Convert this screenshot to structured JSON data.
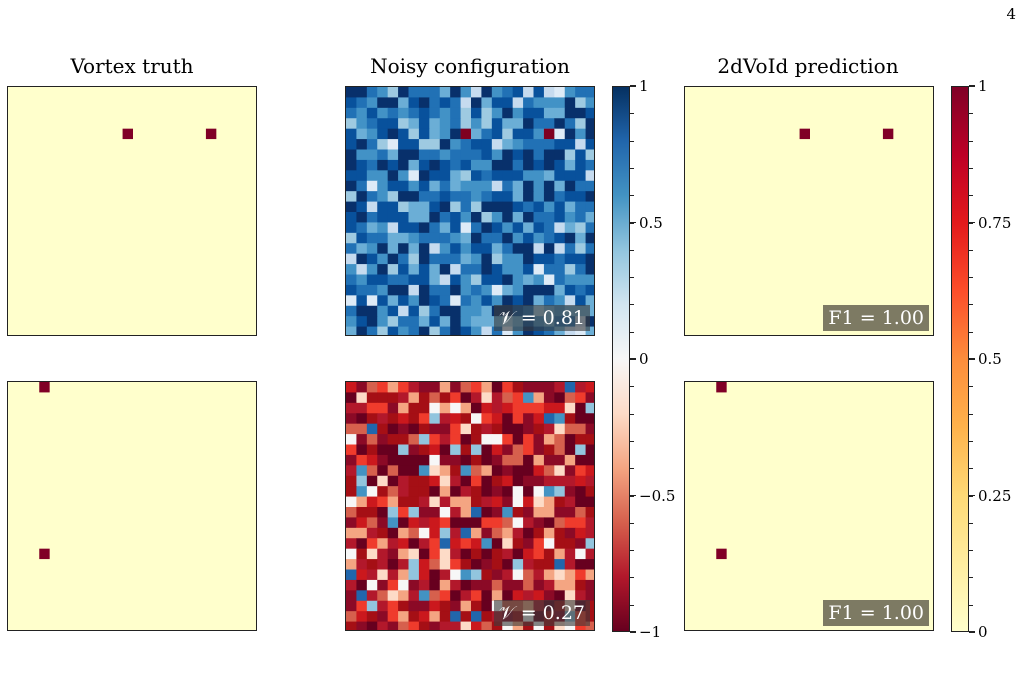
{
  "page_number": "4",
  "titles": {
    "col1": "Vortex truth",
    "col2": "Noisy configuration",
    "col3": "2dVoId prediction"
  },
  "badges": {
    "row1_v": "𝒱 = 0.81",
    "row2_v": "𝒱 = 0.27",
    "row1_f1": "F1  = 1.00",
    "row2_f1": "F1  = 1.00"
  },
  "colorbar_spin": {
    "ticks": [
      "1",
      "0.5",
      "0",
      "−0.5",
      "−1"
    ],
    "colors": [
      "#67001f",
      "#b2182b",
      "#d6604d",
      "#f4a582",
      "#fddbc7",
      "#f7f7f7",
      "#d1e5f0",
      "#92c5de",
      "#4393c3",
      "#2166ac",
      "#053061"
    ]
  },
  "colorbar_vortex": {
    "ticks": [
      "1",
      "0.75",
      "0.5",
      "0.25",
      "0"
    ],
    "colors": [
      "#ffffcc",
      "#ffeda0",
      "#fed976",
      "#feb24c",
      "#fd8d3c",
      "#fc4e2a",
      "#e31a1c",
      "#bd0026",
      "#800026"
    ]
  },
  "chart_data": [
    {
      "type": "heatmap",
      "title": "Vortex truth",
      "grid_size": 24,
      "background_value": 0,
      "vortex_cells": [
        [
          11,
          4
        ],
        [
          19,
          4
        ]
      ]
    },
    {
      "type": "heatmap",
      "title": "Noisy configuration",
      "grid_size": 24,
      "value_range": [
        -1,
        1
      ],
      "metric": "𝒱 = 0.81",
      "vortex_cells": [
        [
          11,
          4
        ],
        [
          19,
          4
        ]
      ]
    },
    {
      "type": "heatmap",
      "title": "2dVoId prediction",
      "grid_size": 24,
      "background_value": 0,
      "vortex_cells": [
        [
          11,
          4
        ],
        [
          19,
          4
        ]
      ],
      "metric": "F1 = 1.00"
    },
    {
      "type": "heatmap",
      "grid_size": 24,
      "background_value": 0,
      "vortex_cells": [
        [
          3,
          0
        ],
        [
          3,
          16
        ]
      ]
    },
    {
      "type": "heatmap",
      "grid_size": 24,
      "value_range": [
        -1,
        1
      ],
      "metric": "𝒱 = 0.27"
    },
    {
      "type": "heatmap",
      "grid_size": 24,
      "background_value": 0,
      "vortex_cells": [
        [
          3,
          0
        ],
        [
          3,
          16
        ]
      ],
      "metric": "F1 = 1.00"
    }
  ]
}
